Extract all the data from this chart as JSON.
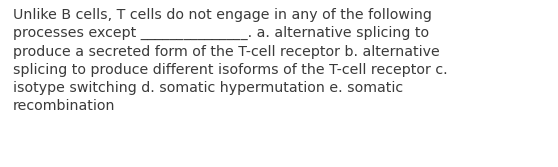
{
  "text": "Unlike B cells, T cells do not engage in any of the following\nprocesses except _______________. a. alternative splicing to\nproduce a secreted form of the T-cell receptor b. alternative\nsplicing to produce different isoforms of the T-cell receptor c.\nisotype switching d. somatic hypermutation e. somatic\nrecombination",
  "background_color": "#ffffff",
  "text_color": "#3a3a3a",
  "font_size": 10.2,
  "fig_width": 5.58,
  "fig_height": 1.67,
  "dpi": 100
}
